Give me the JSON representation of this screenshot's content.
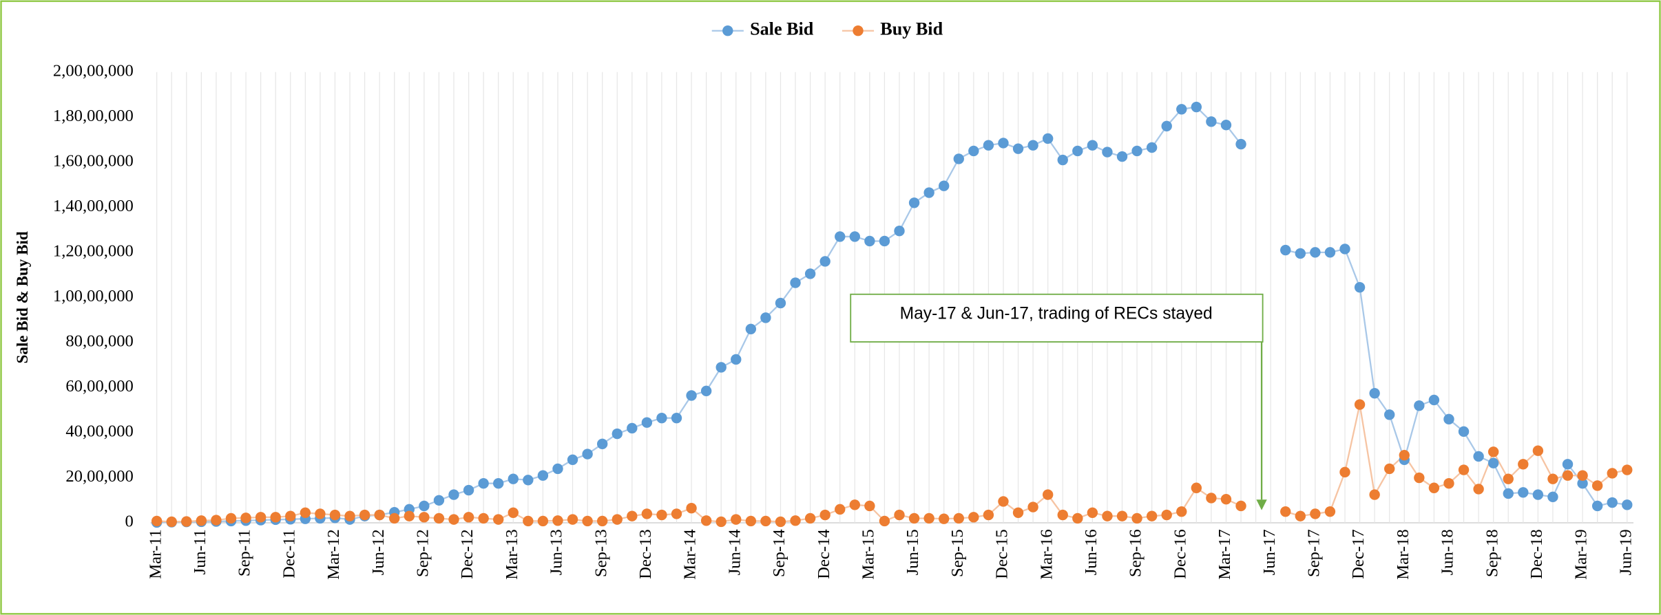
{
  "chart_data": {
    "type": "line",
    "y_label": "Sale Bid & Buy Bid",
    "annotation": "May-17 & Jun-17, trading of RECs stayed",
    "legend": "top",
    "grid": true,
    "categories": [
      "Mar-11",
      null,
      null,
      "Jun-11",
      null,
      null,
      "Sep-11",
      null,
      null,
      "Dec-11",
      null,
      null,
      "Mar-12",
      null,
      null,
      "Jun-12",
      null,
      null,
      "Sep-12",
      null,
      null,
      "Dec-12",
      null,
      null,
      "Mar-13",
      null,
      null,
      "Jun-13",
      null,
      null,
      "Sep-13",
      null,
      null,
      "Dec-13",
      null,
      null,
      "Mar-14",
      null,
      null,
      "Jun-14",
      null,
      null,
      "Sep-14",
      null,
      null,
      "Dec-14",
      null,
      null,
      "Mar-15",
      null,
      null,
      "Jun-15",
      null,
      null,
      "Sep-15",
      null,
      null,
      "Dec-15",
      null,
      null,
      "Mar-16",
      null,
      null,
      "Jun-16",
      null,
      null,
      "Sep-16",
      null,
      null,
      "Dec-16",
      null,
      null,
      "Mar-17",
      null,
      null,
      "Jun-17",
      null,
      null,
      "Sep-17",
      null,
      null,
      "Dec-17",
      null,
      null,
      "Mar-18",
      null,
      null,
      "Jun-18",
      null,
      null,
      "Sep-18",
      null,
      null,
      "Dec-18",
      null,
      null,
      "Mar-19",
      null,
      null,
      "Jun-19"
    ],
    "ylim": [
      0,
      20000000
    ],
    "yticks": [
      0,
      {
        "value": 2000000,
        "label": "20,00,000"
      },
      {
        "value": 4000000,
        "label": "40,00,000"
      },
      {
        "value": 6000000,
        "label": "60,00,000"
      },
      {
        "value": 8000000,
        "label": "80,00,000"
      },
      {
        "value": 10000000,
        "label": "1,00,00,000"
      },
      {
        "value": 12000000,
        "label": "1,20,00,000"
      },
      {
        "value": 14000000,
        "label": "1,40,00,000"
      },
      {
        "value": 16000000,
        "label": "1,60,00,000"
      },
      {
        "value": 18000000,
        "label": "1,80,00,000"
      },
      {
        "value": 20000000,
        "label": "2,00,00,000"
      }
    ],
    "series": [
      {
        "name": "Sale Bid",
        "color": "#5b9bd5",
        "line_color": "#a9c8e8",
        "values": [
          20000,
          30000,
          40000,
          50000,
          60000,
          80000,
          100000,
          120000,
          140000,
          160000,
          180000,
          200000,
          220000,
          150000,
          300000,
          350000,
          470000,
          600000,
          750000,
          1000000,
          1250000,
          1450000,
          1750000,
          1750000,
          1950000,
          1900000,
          2100000,
          2400000,
          2800000,
          3050000,
          3500000,
          3950000,
          4200000,
          4450000,
          4650000,
          4650000,
          5650000,
          5850000,
          6900000,
          7250000,
          8600000,
          9100000,
          9750000,
          10650000,
          11050000,
          11600000,
          12700000,
          12700000,
          12500000,
          12500000,
          12950000,
          14200000,
          14650000,
          14950000,
          16150000,
          16500000,
          16750000,
          16850000,
          16600000,
          16750000,
          17050000,
          16100000,
          16500000,
          16750000,
          16450000,
          16250000,
          16500000,
          16650000,
          17600000,
          18350000,
          18450000,
          17800000,
          17650000,
          16800000,
          null,
          null,
          12100000,
          11950000,
          12000000,
          12000000,
          12150000,
          10450000,
          5750000,
          4800000,
          2800000,
          5200000,
          5450000,
          4600000,
          4050000,
          2950000,
          2650000,
          1300000,
          1350000,
          1250000,
          1150000,
          2600000,
          1750000,
          750000,
          900000,
          800000
        ]
      },
      {
        "name": "Buy Bid",
        "color": "#ed7d31",
        "line_color": "#f6c4a3",
        "values": [
          80000,
          50000,
          60000,
          100000,
          120000,
          200000,
          220000,
          250000,
          250000,
          300000,
          450000,
          400000,
          350000,
          300000,
          350000,
          350000,
          200000,
          300000,
          250000,
          200000,
          150000,
          250000,
          200000,
          150000,
          450000,
          80000,
          80000,
          100000,
          150000,
          80000,
          80000,
          150000,
          300000,
          400000,
          350000,
          400000,
          650000,
          100000,
          50000,
          150000,
          80000,
          80000,
          50000,
          100000,
          200000,
          350000,
          600000,
          800000,
          750000,
          80000,
          350000,
          200000,
          200000,
          180000,
          200000,
          250000,
          350000,
          950000,
          450000,
          700000,
          1250000,
          350000,
          200000,
          450000,
          300000,
          300000,
          200000,
          300000,
          350000,
          500000,
          1550000,
          1100000,
          1050000,
          750000,
          null,
          null,
          500000,
          300000,
          400000,
          500000,
          2250000,
          5250000,
          1250000,
          2400000,
          3000000,
          2000000,
          1550000,
          1750000,
          2350000,
          1500000,
          3150000,
          1950000,
          2600000,
          3200000,
          1950000,
          2100000,
          2100000,
          1650000,
          2200000,
          2350000
        ]
      }
    ]
  }
}
